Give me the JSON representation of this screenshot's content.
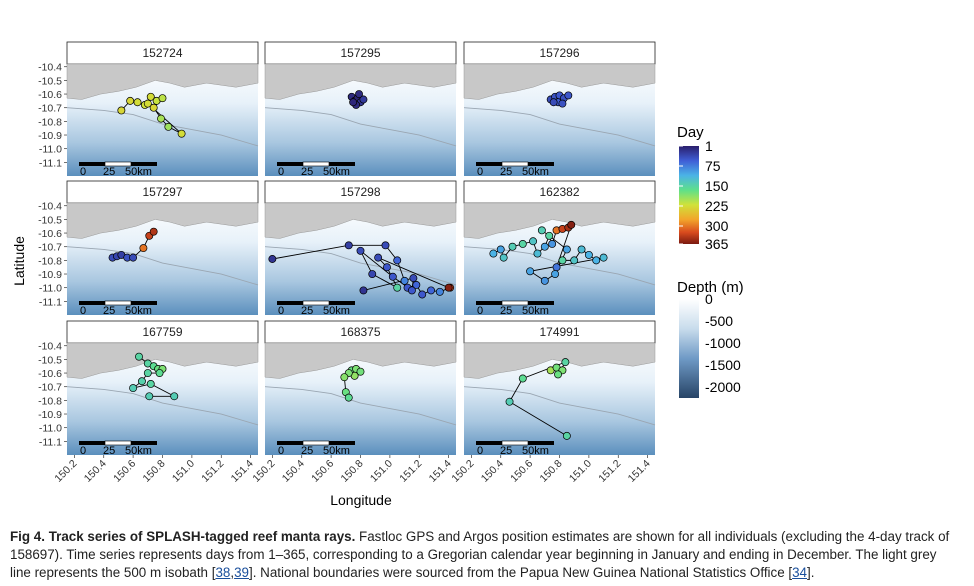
{
  "figure": {
    "panels": [
      {
        "id": "152724"
      },
      {
        "id": "157295"
      },
      {
        "id": "157296"
      },
      {
        "id": "157297"
      },
      {
        "id": "157298"
      },
      {
        "id": "162382"
      },
      {
        "id": "167759"
      },
      {
        "id": "168375"
      },
      {
        "id": "174991"
      }
    ],
    "y_label": "Latitude",
    "x_label": "Longitude",
    "y_ticks": [
      "-10.4",
      "-10.5",
      "-10.6",
      "-10.7",
      "-10.8",
      "-10.9",
      "-11.0",
      "-11.1"
    ],
    "x_ticks": [
      "150.2",
      "150.4",
      "150.6",
      "150.8",
      "151.0",
      "151.2",
      "151.4"
    ],
    "scale_bar": {
      "labels": [
        "0",
        "25",
        "50km"
      ]
    },
    "legend_day": {
      "title": "Day",
      "labels": [
        "1",
        "75",
        "150",
        "225",
        "300",
        "365"
      ]
    },
    "legend_depth": {
      "title": "Depth (m)",
      "labels": [
        "0",
        "-500",
        "-1000",
        "-1500",
        "-2000"
      ]
    }
  },
  "caption": {
    "bold": "Fig 4.  Track series of SPLASH-tagged reef manta rays.",
    "text1": " Fastloc GPS and Argos position estimates are shown for all individuals (excluding the 4-day track of 158697). Time series represents days from 1–365, corresponding to a Gregorian calendar year beginning in January and ending in December. The light grey line represents the 500 m isobath [",
    "ref1": "38",
    "sep": ",",
    "ref2": "39",
    "text2": "]. National boundaries were sourced from the Papua New Guinea National Statistics Office [",
    "ref3": "34",
    "text3": "]."
  },
  "chart_data": {
    "type": "scatter",
    "xlabel": "Longitude",
    "ylabel": "Latitude",
    "xlim": [
      150.15,
      151.45
    ],
    "ylim": [
      -11.2,
      -10.38
    ],
    "color_scale": "Day",
    "series": [
      {
        "name": "152724",
        "points": [
          [
            150.52,
            -10.72,
            230
          ],
          [
            150.58,
            -10.65,
            230
          ],
          [
            150.63,
            -10.66,
            225
          ],
          [
            150.68,
            -10.68,
            220
          ],
          [
            150.72,
            -10.62,
            225
          ],
          [
            150.76,
            -10.65,
            215
          ],
          [
            150.8,
            -10.63,
            210
          ],
          [
            150.74,
            -10.7,
            230
          ],
          [
            150.79,
            -10.78,
            200
          ],
          [
            150.84,
            -10.84,
            195
          ],
          [
            150.93,
            -10.89,
            225
          ],
          [
            150.7,
            -10.67,
            225
          ]
        ]
      },
      {
        "name": "157295",
        "points": [
          [
            150.74,
            -10.62,
            10
          ],
          [
            150.76,
            -10.65,
            15
          ],
          [
            150.78,
            -10.63,
            5
          ],
          [
            150.8,
            -10.66,
            20
          ],
          [
            150.77,
            -10.68,
            10
          ],
          [
            150.82,
            -10.64,
            25
          ],
          [
            150.79,
            -10.6,
            12
          ],
          [
            150.75,
            -10.66,
            8
          ]
        ]
      },
      {
        "name": "157296",
        "points": [
          [
            150.74,
            -10.64,
            40
          ],
          [
            150.77,
            -10.62,
            45
          ],
          [
            150.8,
            -10.61,
            50
          ],
          [
            150.83,
            -10.63,
            45
          ],
          [
            150.79,
            -10.66,
            55
          ],
          [
            150.76,
            -10.66,
            40
          ],
          [
            150.86,
            -10.61,
            50
          ],
          [
            150.82,
            -10.67,
            45
          ]
        ]
      },
      {
        "name": "157297",
        "points": [
          [
            150.46,
            -10.78,
            40
          ],
          [
            150.49,
            -10.77,
            35
          ],
          [
            150.52,
            -10.76,
            30
          ],
          [
            150.56,
            -10.78,
            45
          ],
          [
            150.6,
            -10.78,
            40
          ],
          [
            150.67,
            -10.71,
            300
          ],
          [
            150.71,
            -10.62,
            330
          ],
          [
            150.74,
            -10.59,
            340
          ]
        ]
      },
      {
        "name": "157298",
        "points": [
          [
            150.2,
            -10.79,
            20
          ],
          [
            150.72,
            -10.69,
            30
          ],
          [
            150.97,
            -10.69,
            40
          ],
          [
            151.05,
            -10.8,
            60
          ],
          [
            151.1,
            -10.95,
            80
          ],
          [
            151.12,
            -11.0,
            50
          ],
          [
            151.18,
            -10.98,
            60
          ],
          [
            151.22,
            -11.05,
            50
          ],
          [
            151.28,
            -11.02,
            60
          ],
          [
            151.34,
            -11.03,
            80
          ],
          [
            151.41,
            -11.0,
            330
          ],
          [
            151.4,
            -11.0,
            360
          ],
          [
            150.92,
            -10.78,
            40
          ],
          [
            150.98,
            -10.85,
            50
          ],
          [
            151.05,
            -11.0,
            150
          ],
          [
            150.88,
            -10.9,
            35
          ],
          [
            150.8,
            -10.73,
            40
          ],
          [
            151.02,
            -10.92,
            50
          ],
          [
            151.15,
            -11.02,
            50
          ],
          [
            151.16,
            -10.93,
            40
          ],
          [
            150.82,
            -11.02,
            20
          ]
        ]
      },
      {
        "name": "162382",
        "points": [
          [
            150.35,
            -10.75,
            110
          ],
          [
            150.4,
            -10.72,
            100
          ],
          [
            150.42,
            -10.78,
            130
          ],
          [
            150.48,
            -10.7,
            140
          ],
          [
            150.55,
            -10.68,
            150
          ],
          [
            150.62,
            -10.66,
            130
          ],
          [
            150.65,
            -10.75,
            120
          ],
          [
            150.7,
            -10.7,
            100
          ],
          [
            150.73,
            -10.62,
            150
          ],
          [
            150.75,
            -10.68,
            90
          ],
          [
            150.78,
            -10.58,
            300
          ],
          [
            150.82,
            -10.57,
            330
          ],
          [
            150.86,
            -10.56,
            345
          ],
          [
            150.88,
            -10.54,
            360
          ],
          [
            150.78,
            -10.85,
            70
          ],
          [
            150.82,
            -10.8,
            150
          ],
          [
            150.9,
            -10.8,
            130
          ],
          [
            150.95,
            -10.72,
            120
          ],
          [
            151.0,
            -10.76,
            110
          ],
          [
            151.05,
            -10.8,
            110
          ],
          [
            151.1,
            -10.78,
            120
          ],
          [
            150.6,
            -10.88,
            100
          ],
          [
            150.7,
            -10.95,
            90
          ],
          [
            150.77,
            -10.9,
            100
          ],
          [
            150.85,
            -10.72,
            100
          ],
          [
            150.68,
            -10.58,
            140
          ]
        ]
      },
      {
        "name": "167759",
        "points": [
          [
            150.64,
            -10.48,
            150
          ],
          [
            150.7,
            -10.53,
            150
          ],
          [
            150.74,
            -10.55,
            160
          ],
          [
            150.77,
            -10.57,
            170
          ],
          [
            150.8,
            -10.57,
            180
          ],
          [
            150.78,
            -10.6,
            160
          ],
          [
            150.7,
            -10.6,
            150
          ],
          [
            150.66,
            -10.66,
            145
          ],
          [
            150.6,
            -10.71,
            140
          ],
          [
            150.72,
            -10.68,
            150
          ],
          [
            150.88,
            -10.77,
            140
          ],
          [
            150.71,
            -10.77,
            140
          ]
        ]
      },
      {
        "name": "168375",
        "points": [
          [
            150.74,
            -10.58,
            170
          ],
          [
            150.77,
            -10.57,
            180
          ],
          [
            150.8,
            -10.59,
            175
          ],
          [
            150.76,
            -10.62,
            190
          ],
          [
            150.72,
            -10.6,
            180
          ],
          [
            150.69,
            -10.63,
            185
          ],
          [
            150.7,
            -10.74,
            170
          ],
          [
            150.72,
            -10.78,
            160
          ]
        ]
      },
      {
        "name": "174991",
        "points": [
          [
            150.74,
            -10.58,
            200
          ],
          [
            150.78,
            -10.56,
            175
          ],
          [
            150.82,
            -10.58,
            180
          ],
          [
            150.79,
            -10.61,
            170
          ],
          [
            150.84,
            -10.52,
            150
          ],
          [
            150.55,
            -10.64,
            160
          ],
          [
            150.46,
            -10.81,
            140
          ],
          [
            150.85,
            -11.06,
            150
          ]
        ]
      }
    ]
  }
}
